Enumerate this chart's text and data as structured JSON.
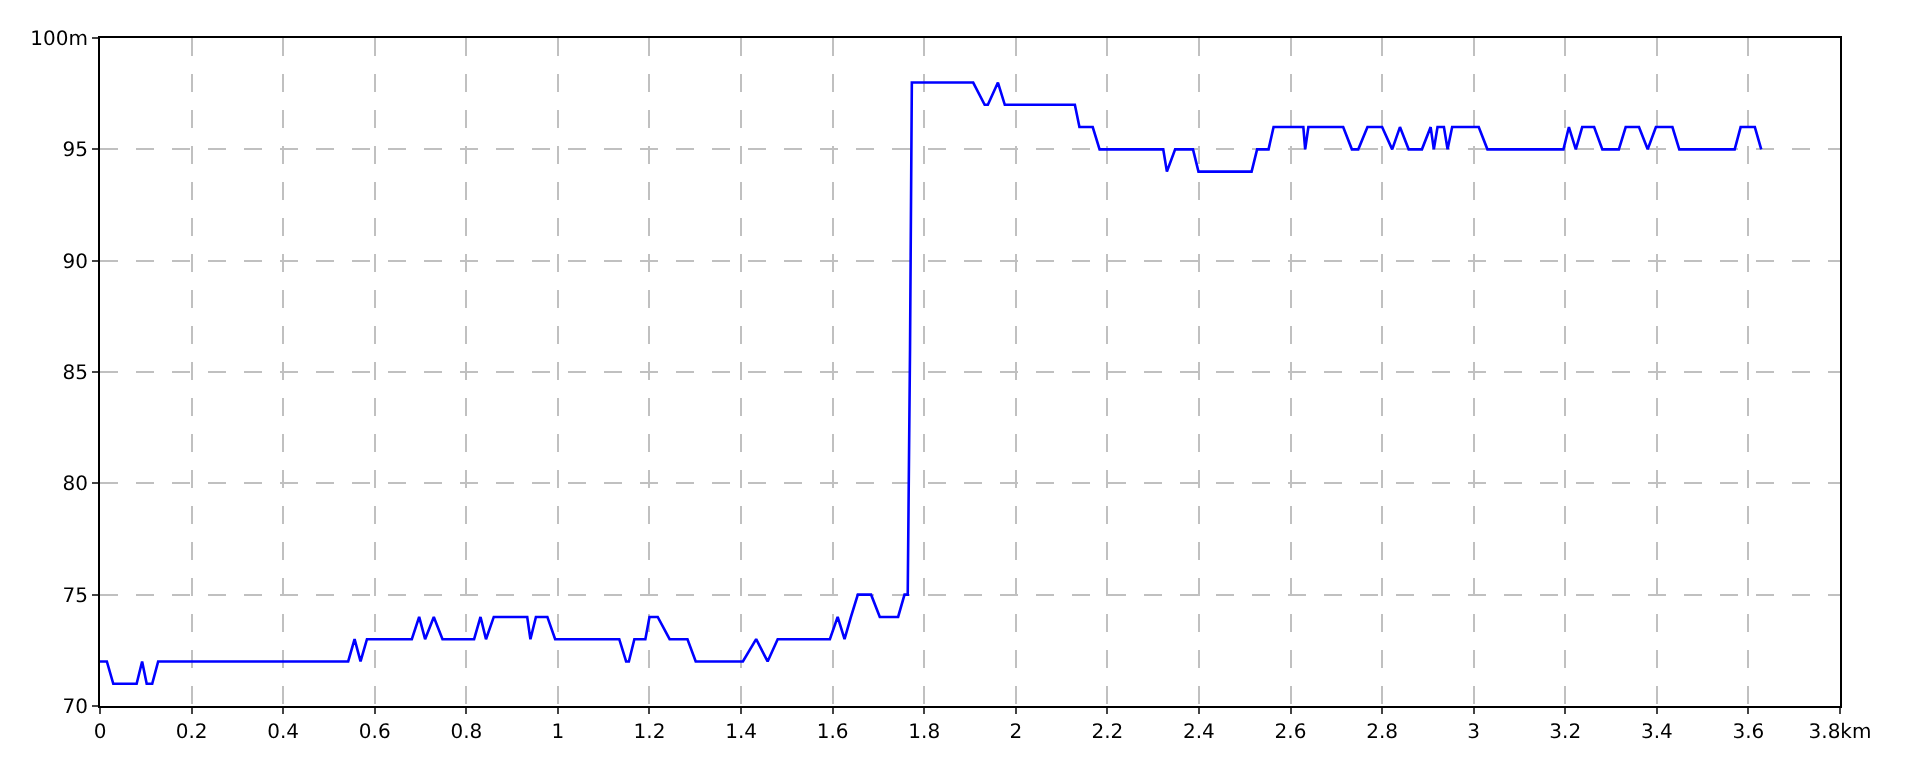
{
  "chart_data": {
    "type": "line",
    "x": [
      0,
      0.015,
      0.029,
      0.08,
      0.092,
      0.102,
      0.114,
      0.127,
      0.542,
      0.556,
      0.569,
      0.583,
      0.681,
      0.697,
      0.71,
      0.729,
      0.748,
      0.817,
      0.831,
      0.843,
      0.86,
      0.933,
      0.94,
      0.952,
      0.977,
      0.994,
      1.134,
      1.149,
      1.155,
      1.167,
      1.191,
      1.2,
      1.218,
      1.244,
      1.283,
      1.301,
      1.404,
      1.433,
      1.458,
      1.48,
      1.594,
      1.611,
      1.626,
      1.64,
      1.655,
      1.684,
      1.703,
      1.743,
      1.757,
      1.764,
      1.769,
      1.773,
      1.907,
      1.932,
      1.939,
      1.961,
      1.976,
      2.129,
      2.139,
      2.168,
      2.183,
      2.322,
      2.33,
      2.348,
      2.387,
      2.399,
      2.515,
      2.527,
      2.552,
      2.563,
      2.628,
      2.632,
      2.639,
      2.715,
      2.734,
      2.748,
      2.768,
      2.8,
      2.822,
      2.839,
      2.858,
      2.887,
      2.906,
      2.913,
      2.921,
      2.935,
      2.943,
      2.953,
      3.011,
      3.03,
      3.196,
      3.208,
      3.223,
      3.237,
      3.263,
      3.281,
      3.317,
      3.332,
      3.361,
      3.38,
      3.398,
      3.434,
      3.449,
      3.57,
      3.583,
      3.614,
      3.628
    ],
    "series": [
      {
        "color": "#0000ff",
        "values": [
          72,
          72,
          71,
          71,
          72,
          71,
          71,
          72,
          72,
          73,
          72,
          73,
          73,
          74,
          73,
          74,
          73,
          73,
          74,
          73,
          74,
          74,
          73,
          74,
          74,
          73,
          73,
          72,
          72,
          73,
          73,
          74,
          74,
          73,
          73,
          72,
          72,
          73,
          72,
          73,
          73,
          74,
          73,
          74,
          75,
          75,
          74,
          74,
          75,
          75,
          86,
          98,
          98,
          97,
          97,
          98,
          97,
          97,
          96,
          96,
          95,
          95,
          94,
          95,
          95,
          94,
          94,
          95,
          95,
          96,
          96,
          95,
          96,
          96,
          95,
          95,
          96,
          96,
          95,
          96,
          95,
          95,
          96,
          95,
          96,
          96,
          95,
          96,
          96,
          95,
          95,
          96,
          95,
          96,
          96,
          95,
          95,
          96,
          96,
          95,
          96,
          96,
          95,
          95,
          96,
          96,
          95
        ]
      }
    ],
    "xlim": [
      0,
      3.8
    ],
    "xticks": [
      0,
      0.2,
      0.4,
      0.6,
      0.8,
      1,
      1.2,
      1.4,
      1.6,
      1.8,
      2,
      2.2,
      2.4,
      2.6,
      2.8,
      3,
      3.2,
      3.4,
      3.6,
      {
        "value": 3.8,
        "label": "3.8km"
      }
    ],
    "ylim": [
      70,
      100
    ],
    "yticks": [
      70,
      75,
      80,
      85,
      90,
      95,
      {
        "value": 100,
        "label": "100m"
      }
    ],
    "grid": true,
    "marker": "none",
    "line_style": "solid"
  }
}
